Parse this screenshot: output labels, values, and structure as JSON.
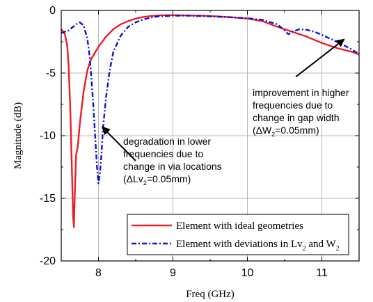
{
  "chart_data": {
    "type": "line",
    "xlabel": "Freq (GHz)",
    "ylabel": "Magnitude (dB)",
    "xlim": [
      7.5,
      11.5
    ],
    "ylim": [
      -20,
      0
    ],
    "xticks": [
      "8",
      "9",
      "10",
      "11"
    ],
    "yticks": [
      "0",
      "-5",
      "-10",
      "-15",
      "-20"
    ],
    "grid": true,
    "legend_position": "bottom-right",
    "series": [
      {
        "name_parts": [
          "Element with ideal geometries"
        ],
        "color": "#ee1c25",
        "dash": "solid",
        "x": [
          7.5,
          7.55,
          7.58,
          7.6,
          7.62,
          7.64,
          7.66,
          7.67,
          7.68,
          7.7,
          7.72,
          7.75,
          7.8,
          7.85,
          7.9,
          8.0,
          8.1,
          8.2,
          8.3,
          8.4,
          8.5,
          8.6,
          8.7,
          8.8,
          8.9,
          9.0,
          9.2,
          9.4,
          9.6,
          9.8,
          10.0,
          10.2,
          10.4,
          10.6,
          10.8,
          11.0,
          11.2,
          11.4,
          11.5
        ],
        "y": [
          -1.5,
          -1.9,
          -2.8,
          -4.5,
          -7.5,
          -12.0,
          -16.5,
          -17.3,
          -15.0,
          -11.5,
          -11.0,
          -9.0,
          -6.5,
          -4.8,
          -3.9,
          -2.9,
          -2.1,
          -1.5,
          -1.1,
          -0.85,
          -0.65,
          -0.52,
          -0.45,
          -0.4,
          -0.38,
          -0.38,
          -0.4,
          -0.42,
          -0.48,
          -0.55,
          -0.65,
          -0.85,
          -1.3,
          -1.7,
          -2.1,
          -2.6,
          -3.0,
          -3.3,
          -3.5
        ]
      },
      {
        "name_parts": [
          "Element with deviations in Lv",
          "2",
          " and W",
          "2"
        ],
        "color": "#1010d0",
        "dash": "dashdot",
        "x": [
          7.5,
          7.6,
          7.7,
          7.75,
          7.8,
          7.85,
          7.88,
          7.9,
          7.93,
          7.96,
          7.98,
          8.0,
          8.02,
          8.04,
          8.06,
          8.1,
          8.15,
          8.2,
          8.3,
          8.4,
          8.5,
          8.6,
          8.7,
          8.8,
          9.0,
          9.2,
          9.4,
          9.6,
          9.8,
          10.0,
          10.2,
          10.4,
          10.5,
          10.55,
          10.6,
          10.7,
          10.8,
          10.9,
          11.0,
          11.2,
          11.4,
          11.5
        ],
        "y": [
          -1.8,
          -1.6,
          -1.1,
          -0.95,
          -1.2,
          -2.2,
          -3.6,
          -5.0,
          -7.5,
          -10.5,
          -12.5,
          -13.8,
          -13.0,
          -11.5,
          -9.5,
          -7.0,
          -4.8,
          -3.3,
          -2.0,
          -1.3,
          -0.95,
          -0.72,
          -0.58,
          -0.48,
          -0.42,
          -0.42,
          -0.45,
          -0.5,
          -0.55,
          -0.62,
          -0.75,
          -1.1,
          -1.6,
          -1.9,
          -1.7,
          -1.5,
          -1.55,
          -1.7,
          -1.95,
          -2.5,
          -3.1,
          -3.5
        ]
      }
    ],
    "annotations": [
      {
        "lines": [
          {
            "parts": [
              "degradation in lower"
            ]
          },
          {
            "parts": [
              "frequencies due to"
            ]
          },
          {
            "parts": [
              "change in via locations"
            ]
          },
          {
            "parts": [
              "(ΔLv",
              "2",
              "=0.05mm)"
            ]
          }
        ],
        "arrow_to": [
          8.05,
          -9.3
        ],
        "arrow_from": [
          8.5,
          -12.0
        ]
      },
      {
        "lines": [
          {
            "parts": [
              "improvement in higher"
            ]
          },
          {
            "parts": [
              "frequencies due to"
            ]
          },
          {
            "parts": [
              "change in gap width"
            ]
          },
          {
            "parts": [
              "(ΔW",
              "2",
              "=0.05mm)"
            ]
          }
        ],
        "arrow_to": [
          11.3,
          -2.3
        ],
        "arrow_from": [
          10.65,
          -5.3
        ]
      }
    ]
  }
}
